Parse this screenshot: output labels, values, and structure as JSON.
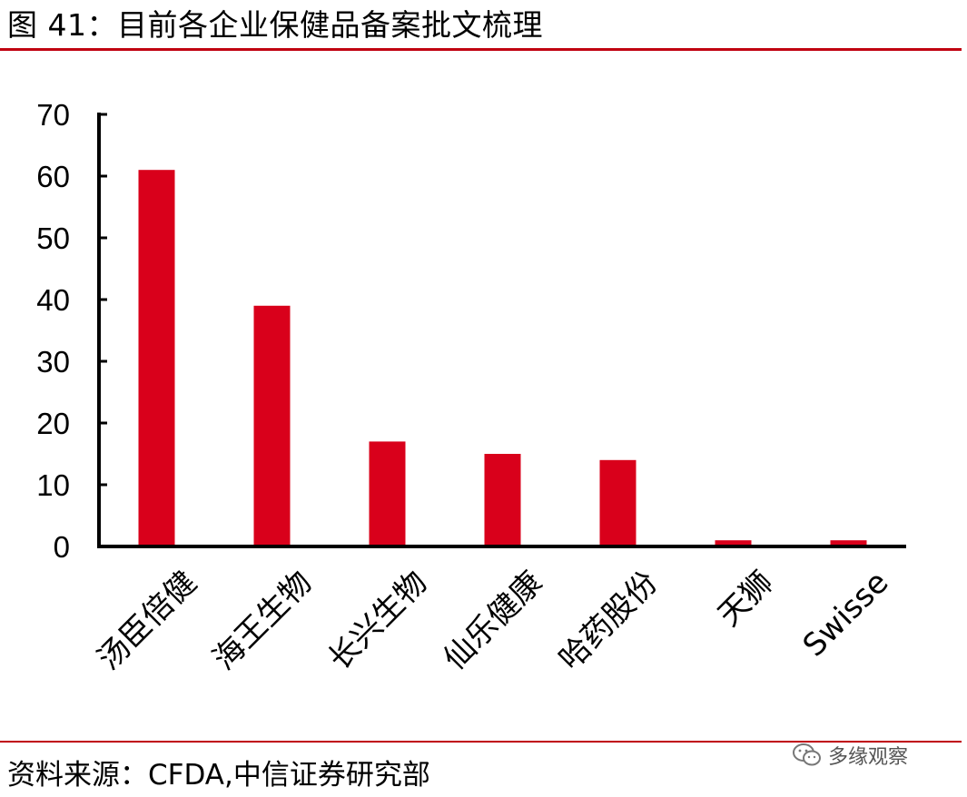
{
  "figure": {
    "title": "图 41：目前各企业保健品备案批文梳理",
    "source": "资料来源：CFDA,中信证券研究部",
    "watermark": "多缘观察",
    "watermark_icon": "wechat-icon"
  },
  "colors": {
    "bar": "#d9001b",
    "rule": "#c00010",
    "axis": "#000000"
  },
  "chart_data": {
    "type": "bar",
    "categories": [
      "汤臣倍健",
      "海王生物",
      "长兴生物",
      "仙乐健康",
      "哈药股份",
      "天狮",
      "Swisse"
    ],
    "values": [
      61,
      39,
      17,
      15,
      14,
      1,
      1
    ],
    "title": "",
    "xlabel": "",
    "ylabel": "",
    "ylim": [
      0,
      70
    ],
    "yticks": [
      0,
      10,
      20,
      30,
      40,
      50,
      60,
      70
    ],
    "grid": false,
    "legend": "none"
  }
}
